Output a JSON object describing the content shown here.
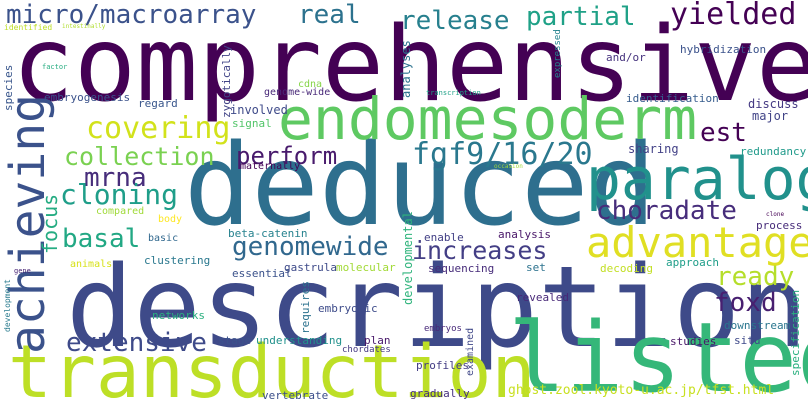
{
  "words": {
    "comprehensive": {
      "text": "comprehensive",
      "color": "#440154"
    },
    "deduced": {
      "text": "deduced",
      "color": "#2e6f8e"
    },
    "description": {
      "text": "description",
      "color": "#3e4a89"
    },
    "transduction": {
      "text": "transduction",
      "color": "#bddf26"
    },
    "listed": {
      "text": "listed",
      "color": "#35b779"
    },
    "endomesoderm": {
      "text": "endomesoderm",
      "color": "#5ec962"
    },
    "paralogs": {
      "text": "paralogs",
      "color": "#21918c"
    },
    "advantage": {
      "text": "advantage",
      "color": "#e0df23"
    },
    "achieving": {
      "text": "achieving",
      "color": "#3b528b"
    },
    "micro_macroarray": {
      "text": "micro/macroarray",
      "color": "#3b528b"
    },
    "real": {
      "text": "real",
      "color": "#2c728e"
    },
    "release": {
      "text": "release",
      "color": "#27808e"
    },
    "partial": {
      "text": "partial",
      "color": "#1fa187"
    },
    "yielded": {
      "text": "yielded",
      "color": "#440154"
    },
    "covering": {
      "text": "covering",
      "color": "#d2e21b"
    },
    "collection": {
      "text": "collection",
      "color": "#7ad151"
    },
    "perform": {
      "text": "perform",
      "color": "#481a6c"
    },
    "fgf": {
      "text": "fgf9/16/20",
      "color": "#2a788e"
    },
    "est": {
      "text": "est",
      "color": "#440154"
    },
    "mrna": {
      "text": "mrna",
      "color": "#472d7b"
    },
    "cloning": {
      "text": "cloning",
      "color": "#1f9e89"
    },
    "choradate": {
      "text": "choradate",
      "color": "#472d7b"
    },
    "basal": {
      "text": "basal",
      "color": "#22a884"
    },
    "genomewide": {
      "text": "genomewide",
      "color": "#31688e"
    },
    "increases": {
      "text": "increases",
      "color": "#433e85"
    },
    "ready": {
      "text": "ready",
      "color": "#b5de2b"
    },
    "foxd": {
      "text": "foxd",
      "color": "#481f70"
    },
    "extensive": {
      "text": "extensive",
      "color": "#3e4a89"
    },
    "focus": {
      "text": "focus",
      "color": "#25ac82"
    },
    "beta_catenin": {
      "text": "beta-catenin",
      "color": "#26828e"
    },
    "developmental": {
      "text": "developmental",
      "color": "#2fb47c"
    },
    "ghost": {
      "text": "ghost.zool.kyoto-u.ac.jp/tfst.html",
      "color": "#c8e020"
    },
    "specification": {
      "text": "specification",
      "color": "#2ab07f"
    },
    "embryogenesis": {
      "text": "embryogenesis",
      "color": "#3b528b"
    },
    "genome_wide": {
      "text": "genome-wide",
      "color": "#482878"
    },
    "identification": {
      "text": "identification",
      "color": "#365c8d"
    },
    "hybridization": {
      "text": "hybridization",
      "color": "#3b528b"
    },
    "and_or": {
      "text": "and/or",
      "color": "#46337e"
    },
    "zygotically": {
      "text": "zygotically",
      "color": "#414487"
    },
    "expressed": {
      "text": "expressed",
      "color": "#25838e"
    },
    "analyses": {
      "text": "analyses",
      "color": "#2c728e"
    },
    "transcription": {
      "text": "transcription",
      "color": "#1fa187"
    },
    "identified": {
      "text": "identified",
      "color": "#bddf26"
    },
    "intestinally": {
      "text": "intestinally",
      "color": "#b0dd2f"
    },
    "factor": {
      "text": "factor",
      "color": "#27ad81"
    },
    "species": {
      "text": "species",
      "color": "#39568c"
    },
    "regard": {
      "text": "regard",
      "color": "#39568c"
    },
    "cdna": {
      "text": "cdna",
      "color": "#86d549"
    },
    "involved": {
      "text": "involved",
      "color": "#3e4a89"
    },
    "signal": {
      "text": "signal",
      "color": "#52c569"
    },
    "major": {
      "text": "major",
      "color": "#414487"
    },
    "discuss": {
      "text": "discuss",
      "color": "#443983"
    },
    "redundancy": {
      "text": "redundancy",
      "color": "#1f9a8a"
    },
    "sharing": {
      "text": "sharing",
      "color": "#424086"
    },
    "occasion": {
      "text": "occasion",
      "color": "#9fda3a"
    },
    "maternally": {
      "text": "maternally",
      "color": "#440154"
    },
    "compared": {
      "text": "compared",
      "color": "#a0da39"
    },
    "body": {
      "text": "body",
      "color": "#fde725"
    },
    "basic": {
      "text": "basic",
      "color": "#31688e"
    },
    "enable": {
      "text": "enable",
      "color": "#423f85"
    },
    "analysis": {
      "text": "analysis",
      "color": "#481668"
    },
    "clone": {
      "text": "clone",
      "color": "#440154"
    },
    "process": {
      "text": "process",
      "color": "#472c7a"
    },
    "clustering": {
      "text": "clustering",
      "color": "#2a788e"
    },
    "gastrula": {
      "text": "gastrula",
      "color": "#3e4a89"
    },
    "molecular": {
      "text": "molecular",
      "color": "#a2da37"
    },
    "set": {
      "text": "set",
      "color": "#2c728e"
    },
    "decoding": {
      "text": "decoding",
      "color": "#c2df23"
    },
    "approach": {
      "text": "approach",
      "color": "#1f9e89"
    },
    "sequencing": {
      "text": "sequencing",
      "color": "#472c7a"
    },
    "essential": {
      "text": "essential",
      "color": "#3b528b"
    },
    "gene": {
      "text": "gene",
      "color": "#482475"
    },
    "animals": {
      "text": "animals",
      "color": "#d8e219"
    },
    "development": {
      "text": "development",
      "color": "#297b8e"
    },
    "networks": {
      "text": "networks",
      "color": "#29af7f"
    },
    "embryonic": {
      "text": "embryonic",
      "color": "#3e4c8a"
    },
    "requires": {
      "text": "requires",
      "color": "#2c728e"
    },
    "revealed": {
      "text": "revealed",
      "color": "#482878"
    },
    "downstream": {
      "text": "downstream",
      "color": "#2a768e"
    },
    "situ": {
      "text": "situ",
      "color": "#3e4989"
    },
    "stage": {
      "text": "stage",
      "color": "#3b528b"
    },
    "understanding": {
      "text": "understanding",
      "color": "#21918c"
    },
    "plan": {
      "text": "plan",
      "color": "#48186a"
    },
    "chordates": {
      "text": "chordates",
      "color": "#453781"
    },
    "embryos": {
      "text": "embryos",
      "color": "#482979"
    },
    "studies": {
      "text": "studies",
      "color": "#481668"
    },
    "profiles": {
      "text": "profiles",
      "color": "#433d84"
    },
    "examined": {
      "text": "examined",
      "color": "#3f4788"
    },
    "gradually": {
      "text": "gradually",
      "color": "#46307e"
    },
    "vertebrate": {
      "text": "vertebrate",
      "color": "#3c4f8a"
    }
  }
}
